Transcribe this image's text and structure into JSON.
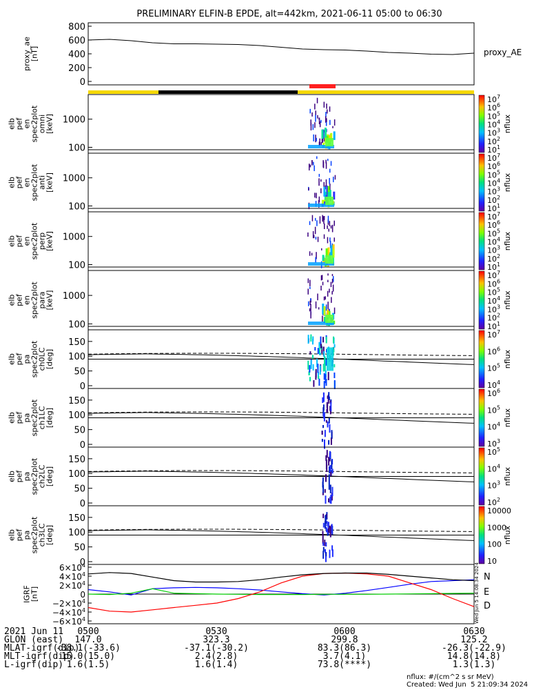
{
  "title": "PRELIMINARY ELFIN-B EPDE, alt=442km, 2021-06-11 05:00 to 06:30",
  "chart_data": [
    {
      "type": "line",
      "panel": "proxy_ae",
      "ylabel": [
        "proxy_ae",
        "[nT]"
      ],
      "legend": "proxy_AE",
      "yticks": [
        "800",
        "600",
        "400",
        "200",
        "0"
      ],
      "ylim": [
        -50,
        850
      ],
      "x_hours": [
        5.0,
        5.083,
        5.167,
        5.25,
        5.333,
        5.417,
        5.5,
        5.583,
        5.667,
        5.75,
        5.833,
        5.917,
        6.0,
        6.083,
        6.167,
        6.25,
        6.333,
        6.417,
        6.5
      ],
      "values": [
        600,
        610,
        590,
        560,
        545,
        545,
        540,
        535,
        520,
        495,
        470,
        460,
        455,
        440,
        420,
        410,
        395,
        390,
        410
      ]
    },
    {
      "type": "heatmap",
      "panel": "spec2plot_omni",
      "ylabel": [
        "elb",
        "pef",
        "en",
        "spec2plot",
        "omni",
        "[keV]"
      ],
      "yticks": [
        "1000",
        "100"
      ],
      "colorbar": {
        "label": "nflux",
        "ticks": [
          "10^7",
          "10^6",
          "10^5",
          "10^4",
          "10^3",
          "10^2",
          "10^1"
        ]
      }
    },
    {
      "type": "heatmap",
      "panel": "spec2plot_anti",
      "ylabel": [
        "elb",
        "pef",
        "en",
        "spec2plot",
        "anti",
        "[keV]"
      ],
      "yticks": [
        "1000",
        "100"
      ],
      "colorbar": {
        "label": "nflux",
        "ticks": [
          "10^7",
          "10^6",
          "10^5",
          "10^4",
          "10^3",
          "10^2",
          "10^1"
        ]
      }
    },
    {
      "type": "heatmap",
      "panel": "spec2plot_perp",
      "ylabel": [
        "elb",
        "pef",
        "en",
        "spec2plot",
        "perp",
        "[keV]"
      ],
      "yticks": [
        "1000",
        "100"
      ],
      "colorbar": {
        "label": "nflux",
        "ticks": [
          "10^7",
          "10^6",
          "10^5",
          "10^4",
          "10^3",
          "10^2",
          "10^1"
        ]
      }
    },
    {
      "type": "heatmap",
      "panel": "spec2plot_para",
      "ylabel": [
        "elb",
        "pef",
        "en",
        "spec2plot",
        "para",
        "[keV]"
      ],
      "yticks": [
        "1000",
        "100"
      ],
      "colorbar": {
        "label": "nflux",
        "ticks": [
          "10^7",
          "10^6",
          "10^5",
          "10^4",
          "10^3",
          "10^2",
          "10^1"
        ]
      }
    },
    {
      "type": "heatmap",
      "panel": "ch0LC",
      "ylabel": [
        "elb",
        "pef",
        "pa",
        "spec2plot",
        "ch0LC",
        "[deg]"
      ],
      "yticks": [
        "150",
        "100",
        "50",
        "0"
      ],
      "colorbar": {
        "label": "nflux",
        "ticks": [
          "10^7",
          "10^6",
          "10^5",
          "10^4"
        ]
      }
    },
    {
      "type": "heatmap",
      "panel": "ch1LC",
      "ylabel": [
        "elb",
        "pef",
        "pa",
        "spec2plot",
        "ch1LC",
        "[deg]"
      ],
      "yticks": [
        "150",
        "100",
        "50",
        "0"
      ],
      "colorbar": {
        "label": "nflux",
        "ticks": [
          "10^6",
          "10^5",
          "10^4",
          "10^3"
        ]
      }
    },
    {
      "type": "heatmap",
      "panel": "ch2LC",
      "ylabel": [
        "elb",
        "pef",
        "pa",
        "spec2plot",
        "ch2LC",
        "[deg]"
      ],
      "yticks": [
        "150",
        "100",
        "50",
        "0"
      ],
      "colorbar": {
        "label": "nflux",
        "ticks": [
          "10^5",
          "10^4",
          "10^3",
          "10^2"
        ]
      }
    },
    {
      "type": "heatmap",
      "panel": "ch3LC",
      "ylabel": [
        "elb",
        "pef",
        "pa",
        "spec2plot",
        "ch3LC",
        "[deg]"
      ],
      "yticks": [
        "150",
        "100",
        "50",
        "0"
      ],
      "colorbar": {
        "label": "nflux",
        "ticks": [
          "10000",
          "1000",
          "100",
          "10"
        ]
      }
    },
    {
      "type": "line",
      "panel": "IGRF",
      "ylabel": [
        "IGRF",
        "[nT]"
      ],
      "yticks": [
        "6×10^4",
        "4×10^4",
        "2×10^4",
        "0",
        "−2×10^4",
        "−4×10^4",
        "−6×10^4"
      ],
      "ylim": [
        -60000,
        60000
      ],
      "x_hours": [
        5.0,
        5.083,
        5.167,
        5.25,
        5.333,
        5.417,
        5.5,
        5.583,
        5.667,
        5.75,
        5.833,
        5.917,
        6.0,
        6.083,
        6.167,
        6.25,
        6.333,
        6.417,
        6.5
      ],
      "series": [
        {
          "name": "N",
          "color": "#0000ff",
          "values": [
            10000,
            5000,
            -2000,
            12000,
            14000,
            15000,
            14000,
            12000,
            9000,
            5000,
            1000,
            -2000,
            2000,
            8000,
            15000,
            22000,
            28000,
            30000,
            32000
          ]
        },
        {
          "name": "E",
          "color": "#00cc00",
          "values": [
            0,
            -1000,
            2000,
            12000,
            2000,
            1000,
            0,
            -500,
            -1000,
            -1000,
            -1000,
            -500,
            -500,
            -500,
            0,
            500,
            1000,
            1500,
            2000
          ]
        },
        {
          "name": "D",
          "color": "#ff0000",
          "values": [
            -30000,
            -38000,
            -40000,
            -35000,
            -30000,
            -25000,
            -20000,
            -10000,
            5000,
            25000,
            40000,
            46000,
            47000,
            45000,
            40000,
            25000,
            10000,
            -10000,
            -28000
          ]
        },
        {
          "name": "",
          "color": "#000000",
          "values": [
            45000,
            48000,
            46000,
            38000,
            30000,
            27000,
            27000,
            28000,
            32000,
            38000,
            43000,
            46000,
            47000,
            47000,
            44000,
            40000,
            36000,
            32000,
            30000
          ]
        }
      ]
    }
  ],
  "panel_labels": {
    "proxy": [
      "proxy_ae",
      "[nT]"
    ],
    "omni": [
      "elb",
      "pef",
      "en",
      "spec2plot",
      "omni",
      "[keV]"
    ],
    "anti": [
      "elb",
      "pef",
      "en",
      "spec2plot",
      "anti",
      "[keV]"
    ],
    "perp": [
      "elb",
      "pef",
      "en",
      "spec2plot",
      "perp",
      "[keV]"
    ],
    "para": [
      "elb",
      "pef",
      "en",
      "spec2plot",
      "para",
      "[keV]"
    ],
    "ch0": [
      "elb",
      "pef",
      "pa",
      "spec2plot",
      "ch0LC",
      "[deg]"
    ],
    "ch1": [
      "elb",
      "pef",
      "pa",
      "spec2plot",
      "ch1LC",
      "[deg]"
    ],
    "ch2": [
      "elb",
      "pef",
      "pa",
      "spec2plot",
      "ch2LC",
      "[deg]"
    ],
    "ch3": [
      "elb",
      "pef",
      "pa",
      "spec2plot",
      "ch3LC",
      "[deg]"
    ],
    "igrf": [
      "IGRF",
      "[nT]"
    ]
  },
  "side_labels": {
    "proxy_legend": "proxy_AE",
    "nflux": "nflux",
    "N": "N",
    "E": "E",
    "D": "D"
  },
  "colorbar_ticks": {
    "spec": [
      "10^7",
      "10^6",
      "10^5",
      "10^4",
      "10^3",
      "10^2",
      "10^1"
    ],
    "ch0": [
      "10^7",
      "10^6",
      "10^5",
      "10^4"
    ],
    "ch1": [
      "10^6",
      "10^5",
      "10^4",
      "10^3"
    ],
    "ch2": [
      "10^5",
      "10^4",
      "10^3",
      "10^2"
    ],
    "ch3": [
      "10000",
      "1000",
      "100",
      "10"
    ]
  },
  "tick_labels": {
    "proxy": [
      "800",
      "600",
      "400",
      "200",
      "0"
    ],
    "energy": [
      "1000",
      "100"
    ],
    "pa": [
      "150",
      "100",
      "50",
      "0"
    ],
    "igrf": [
      "6×10^4",
      "4×10^4",
      "2×10^4",
      "0",
      "−2×10^4",
      "−4×10^4",
      "−6×10^4"
    ]
  },
  "ephemeris": {
    "row_labels": [
      "2021 Jun 11",
      "GLON (east)",
      "MLAT-igrf(dip)",
      "MLT-igrf(dip)",
      "L-igrf(dip)"
    ],
    "columns": [
      {
        "time": "0500",
        "values": [
          "147.0",
          "-38.1(-33.6)",
          "15.0(15.0)",
          "1.6(1.5)"
        ]
      },
      {
        "time": "0530",
        "values": [
          "323.3",
          "-37.1(-30.2)",
          "2.4(2.8)",
          "1.6(1.4)"
        ]
      },
      {
        "time": "0600",
        "values": [
          "299.8",
          "83.3(86.3)",
          "3.7(4.1)",
          "73.8(****)"
        ]
      },
      {
        "time": "0630",
        "values": [
          "125.2",
          "-26.3(-22.9)",
          "14.8(14.8)",
          "1.3(1.3)"
        ]
      }
    ]
  },
  "footer": {
    "units": "nflux: #/(cm^2 s sr MeV)",
    "created": "Created: Wed Jun  5 21:09:34 2024",
    "vertical_stamp": "Wed Jun  5 14:08:34 2024"
  }
}
